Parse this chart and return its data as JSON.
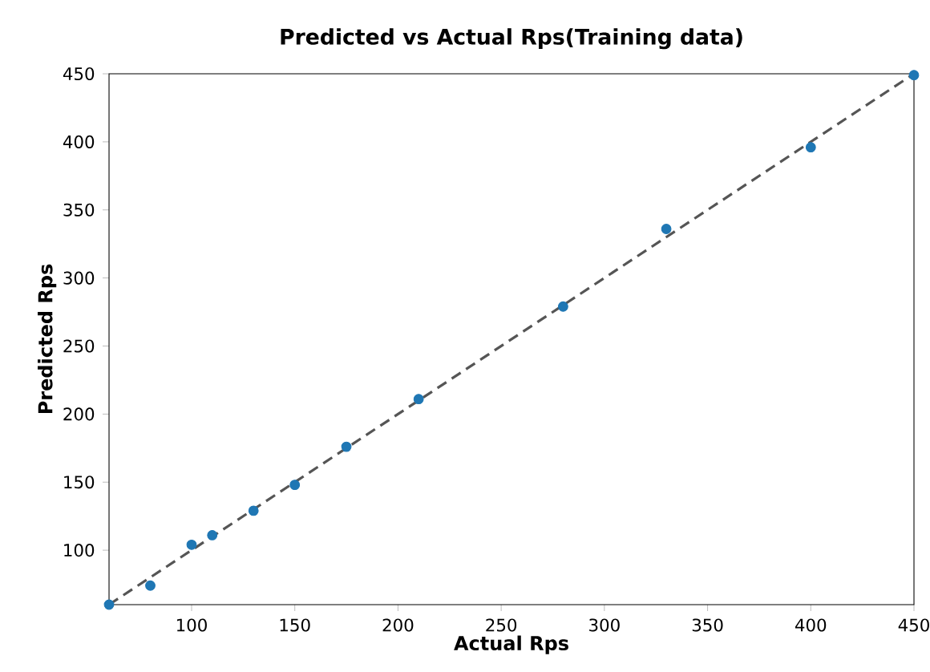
{
  "chart_data": {
    "type": "scatter",
    "title": "Predicted vs Actual Rps(Training data)",
    "xlabel": "Actual Rps",
    "ylabel": "Predicted Rps",
    "marker": "circle",
    "xlim": [
      60,
      450
    ],
    "ylim": [
      60,
      450
    ],
    "xticks": [
      100,
      150,
      200,
      250,
      300,
      350,
      400,
      450
    ],
    "yticks": [
      100,
      150,
      200,
      250,
      300,
      350,
      400,
      450
    ],
    "series": [
      {
        "color": "#1f77b4",
        "x": [
          60,
          80,
          100,
          110,
          130,
          150,
          175,
          210,
          280,
          330,
          400,
          450
        ],
        "values": [
          60,
          74,
          104,
          111,
          129,
          148,
          176,
          211,
          279,
          336,
          396,
          449
        ]
      },
      {
        "type": "line",
        "color": "#555555",
        "line_style": "dashed",
        "x": [
          60,
          450
        ],
        "values": [
          60,
          450
        ]
      }
    ]
  }
}
